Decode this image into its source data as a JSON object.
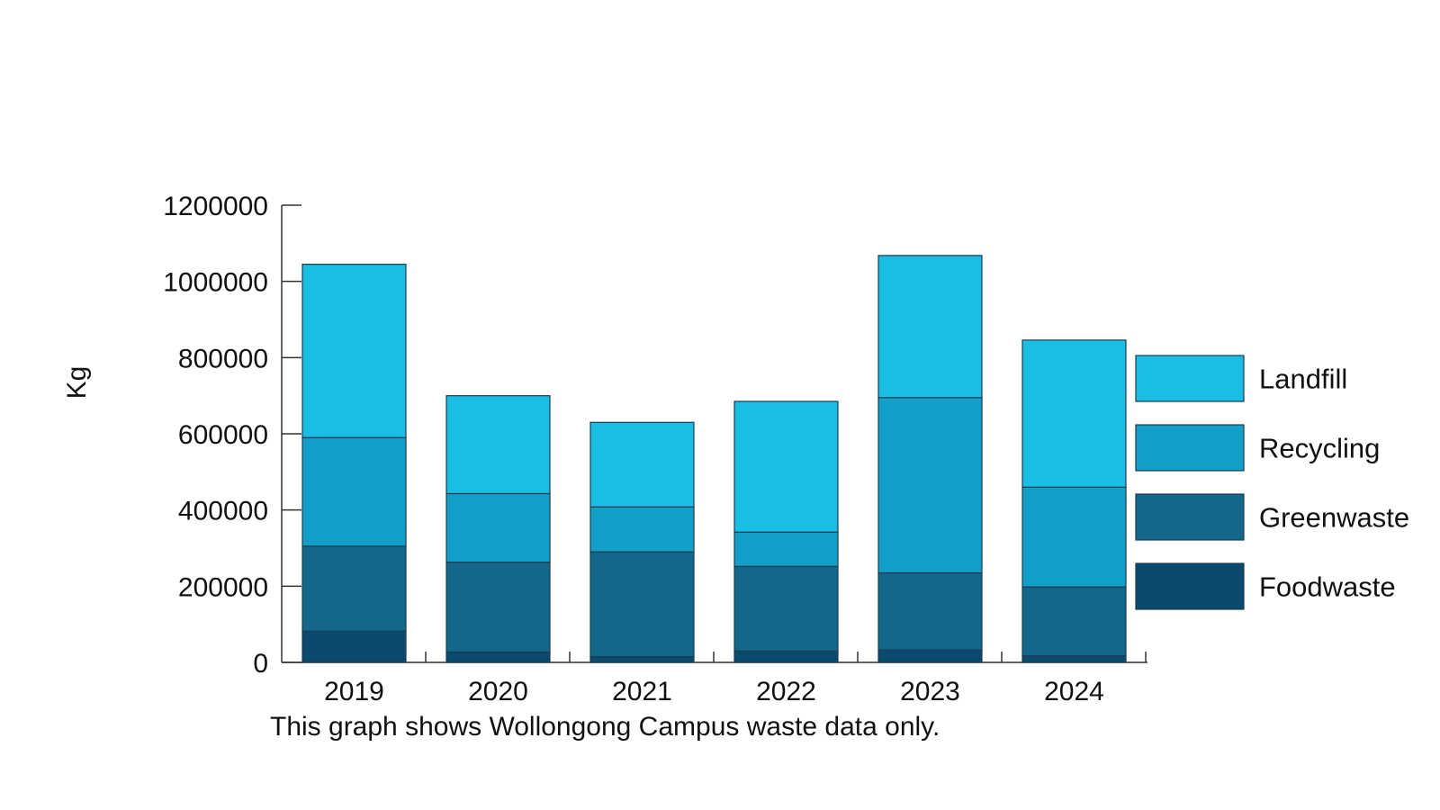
{
  "chart_data": {
    "type": "bar",
    "stacked": true,
    "title": "",
    "xlabel": "",
    "ylabel": "Kg",
    "caption": "This graph shows Wollongong Campus waste data only.",
    "ylim": [
      0,
      1200000
    ],
    "yticks": [
      0,
      200000,
      400000,
      600000,
      800000,
      1000000,
      1200000
    ],
    "categories": [
      "2019",
      "2020",
      "2021",
      "2022",
      "2023",
      "2024"
    ],
    "legend_position": "right",
    "grid": false,
    "series": [
      {
        "name": "Foodwaste",
        "color": "#0b4a6c",
        "values": [
          82000,
          27000,
          15000,
          30000,
          33000,
          17000
        ]
      },
      {
        "name": "Greenwaste",
        "color": "#13678b",
        "values": [
          223000,
          236000,
          275000,
          222000,
          202000,
          181000
        ]
      },
      {
        "name": "Recycling",
        "color": "#13a0c8",
        "values": [
          285000,
          180000,
          118000,
          90000,
          460000,
          262000
        ]
      },
      {
        "name": "Landfill",
        "color": "#1abde4",
        "values": [
          455000,
          257000,
          222000,
          343000,
          373000,
          386000
        ]
      }
    ]
  }
}
